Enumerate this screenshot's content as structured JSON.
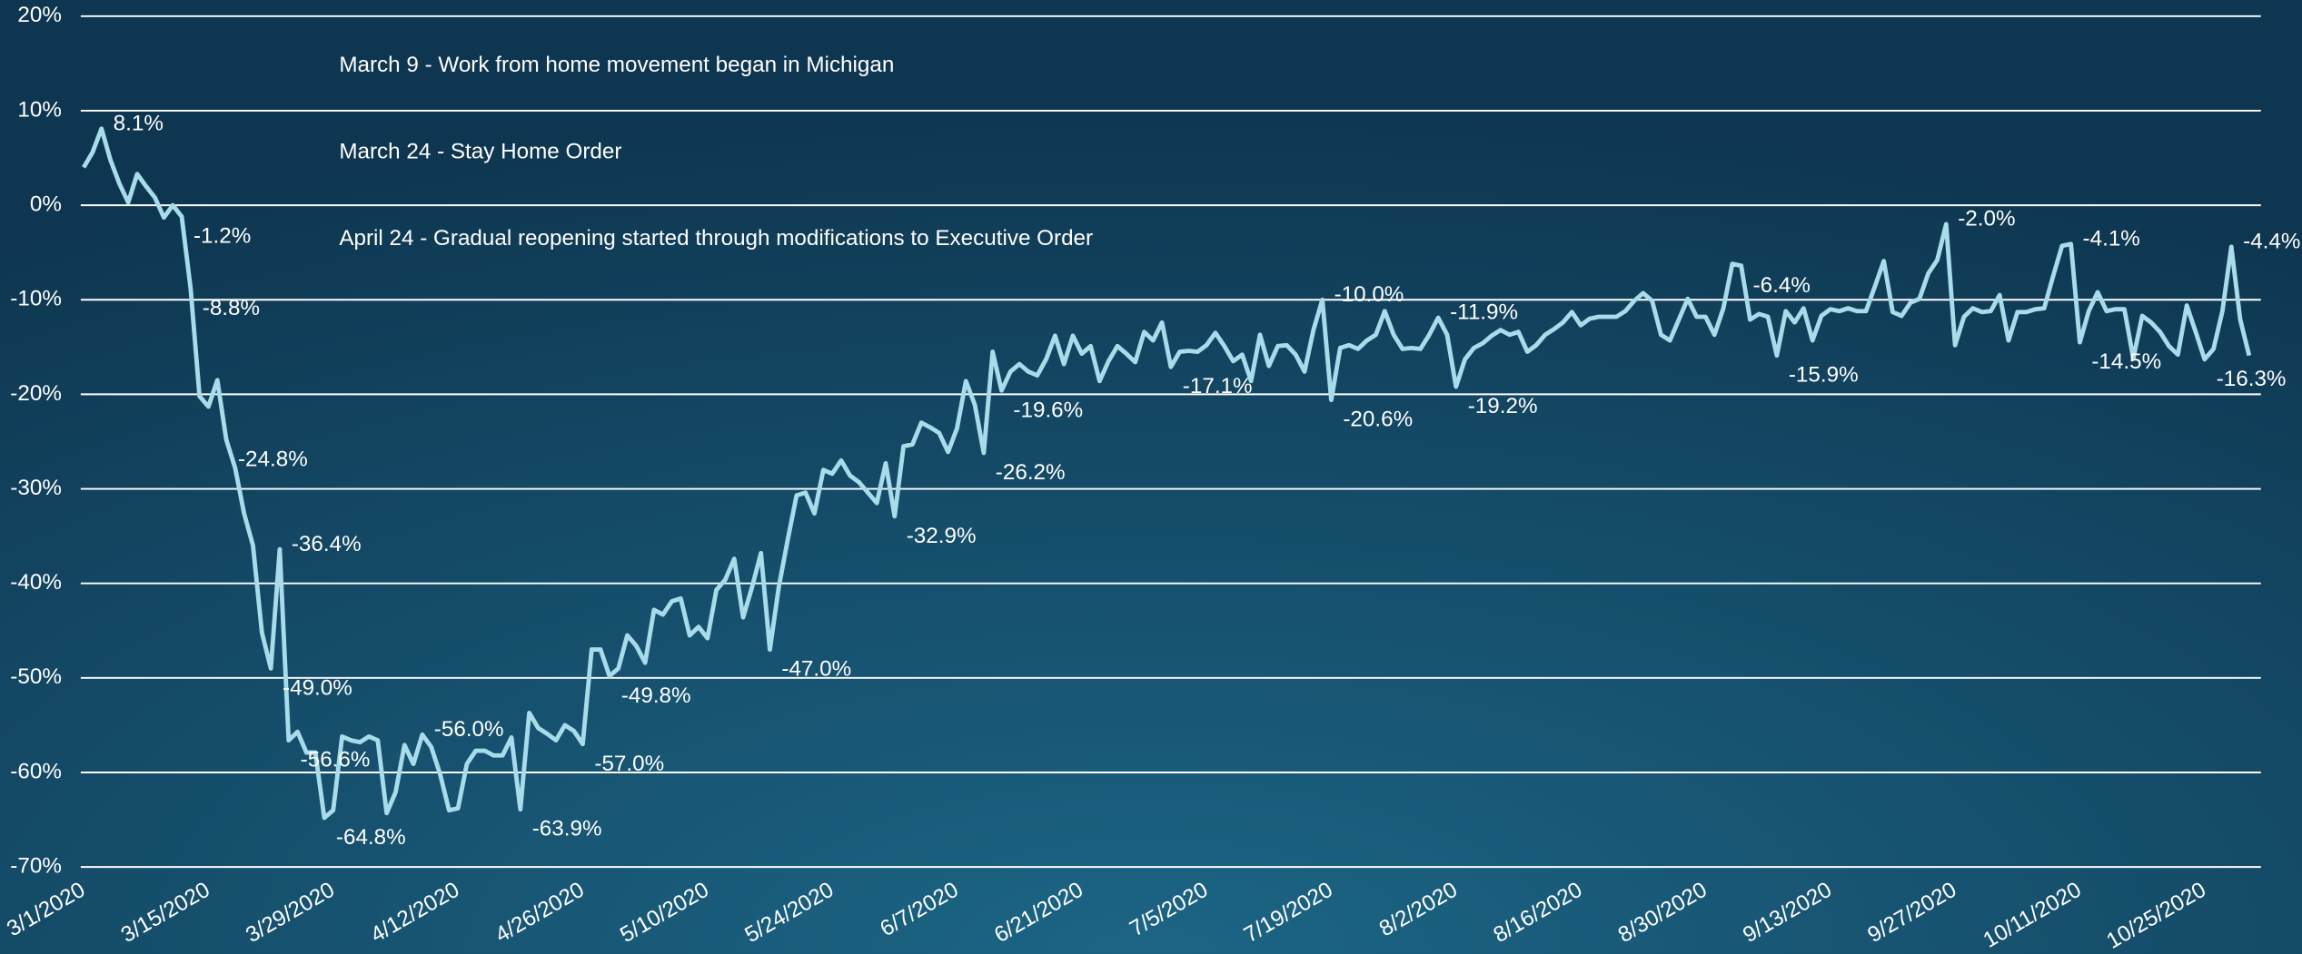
{
  "chart_data": {
    "type": "line",
    "annotations": [
      "March 9 - Work from home movement began in Michigan",
      "March 24 - Stay Home Order",
      "April 24 - Gradual reopening started through modifications to Executive Order"
    ],
    "categories": [
      "3/1/2020",
      null,
      null,
      null,
      null,
      null,
      null,
      null,
      null,
      null,
      null,
      null,
      null,
      null,
      "3/15/2020",
      null,
      null,
      null,
      null,
      null,
      null,
      null,
      null,
      null,
      null,
      null,
      null,
      null,
      "3/29/2020",
      null,
      null,
      null,
      null,
      null,
      null,
      null,
      null,
      null,
      null,
      null,
      null,
      null,
      "4/12/2020",
      null,
      null,
      null,
      null,
      null,
      null,
      null,
      null,
      null,
      null,
      null,
      null,
      null,
      "4/26/2020",
      null,
      null,
      null,
      null,
      null,
      null,
      null,
      null,
      null,
      null,
      null,
      null,
      null,
      "5/10/2020",
      null,
      null,
      null,
      null,
      null,
      null,
      null,
      null,
      null,
      null,
      null,
      null,
      null,
      "5/24/2020",
      null,
      null,
      null,
      null,
      null,
      null,
      null,
      null,
      null,
      null,
      null,
      null,
      null,
      "6/7/2020",
      null,
      null,
      null,
      null,
      null,
      null,
      null,
      null,
      null,
      null,
      null,
      null,
      null,
      "6/21/2020",
      null,
      null,
      null,
      null,
      null,
      null,
      null,
      null,
      null,
      null,
      null,
      null,
      null,
      "7/5/2020",
      null,
      null,
      null,
      null,
      null,
      null,
      null,
      null,
      null,
      null,
      null,
      null,
      null,
      "7/19/2020",
      null,
      null,
      null,
      null,
      null,
      null,
      null,
      null,
      null,
      null,
      null,
      null,
      null,
      "8/2/2020",
      null,
      null,
      null,
      null,
      null,
      null,
      null,
      null,
      null,
      null,
      null,
      null,
      null,
      "8/16/2020",
      null,
      null,
      null,
      null,
      null,
      null,
      null,
      null,
      null,
      null,
      null,
      null,
      null,
      "8/30/2020",
      null,
      null,
      null,
      null,
      null,
      null,
      null,
      null,
      null,
      null,
      null,
      null,
      null,
      "9/13/2020",
      null,
      null,
      null,
      null,
      null,
      null,
      null,
      null,
      null,
      null,
      null,
      null,
      null,
      "9/27/2020",
      null,
      null,
      null,
      null,
      null,
      null,
      null,
      null,
      null,
      null,
      null,
      null,
      null,
      "10/11/2020",
      null,
      null,
      null,
      null,
      null,
      null,
      null,
      null,
      null,
      null,
      null,
      null,
      null,
      "10/25/2020",
      null,
      null,
      null,
      null,
      null
    ],
    "values": [
      4.0,
      5.6,
      8.1,
      4.8,
      2.3,
      0.3,
      3.3,
      2.0,
      0.8,
      -1.3,
      0.0,
      -1.2,
      -8.8,
      -20.2,
      -21.3,
      -18.5,
      -24.8,
      -27.8,
      -32.6,
      -36.0,
      -45.2,
      -49.0,
      -36.4,
      -56.6,
      -55.7,
      -57.9,
      -57.9,
      -64.8,
      -64.0,
      -56.2,
      -56.6,
      -56.8,
      -56.2,
      -56.6,
      -64.3,
      -62.1,
      -57.1,
      -59.1,
      -56.0,
      -57.3,
      -60.2,
      -64.0,
      -63.8,
      -59.1,
      -57.7,
      -57.7,
      -58.2,
      -58.2,
      -56.3,
      -63.9,
      -53.7,
      -55.3,
      -55.9,
      -56.6,
      -55.0,
      -55.6,
      -57.0,
      -47.0,
      -47.0,
      -49.8,
      -49.0,
      -45.5,
      -46.6,
      -48.4,
      -42.8,
      -43.3,
      -41.9,
      -41.6,
      -45.5,
      -44.6,
      -45.8,
      -40.7,
      -39.6,
      -37.4,
      -43.6,
      -40.4,
      -36.8,
      -47.0,
      -40.4,
      -35.4,
      -30.7,
      -30.4,
      -32.6,
      -28.0,
      -28.4,
      -27.0,
      -28.6,
      -29.3,
      -30.4,
      -31.5,
      -27.3,
      -32.9,
      -25.5,
      -25.3,
      -23.0,
      -23.5,
      -24.1,
      -26.1,
      -23.6,
      -18.6,
      -21.1,
      -26.2,
      -15.5,
      -19.6,
      -17.6,
      -16.8,
      -17.6,
      -18.0,
      -16.3,
      -13.8,
      -16.8,
      -13.8,
      -15.7,
      -14.9,
      -18.6,
      -16.5,
      -14.9,
      -15.7,
      -16.6,
      -13.4,
      -14.3,
      -12.4,
      -17.1,
      -15.5,
      -15.4,
      -15.5,
      -14.8,
      -13.5,
      -14.9,
      -16.5,
      -15.8,
      -18.6,
      -13.7,
      -17.0,
      -14.9,
      -14.8,
      -15.8,
      -17.6,
      -13.2,
      -10.0,
      -20.6,
      -15.1,
      -14.8,
      -15.2,
      -14.3,
      -13.7,
      -11.2,
      -13.7,
      -15.2,
      -15.1,
      -15.2,
      -13.7,
      -11.9,
      -13.7,
      -19.2,
      -16.3,
      -15.1,
      -14.6,
      -13.8,
      -13.2,
      -13.7,
      -13.4,
      -15.5,
      -14.8,
      -13.7,
      -13.1,
      -12.4,
      -11.3,
      -12.7,
      -12.0,
      -11.8,
      -11.8,
      -11.8,
      -11.2,
      -10.1,
      -9.3,
      -10.1,
      -13.7,
      -14.3,
      -12.1,
      -9.9,
      -11.8,
      -11.8,
      -13.7,
      -10.9,
      -6.2,
      -6.4,
      -12.1,
      -11.5,
      -11.8,
      -15.9,
      -11.2,
      -12.4,
      -10.9,
      -14.3,
      -11.7,
      -11.0,
      -11.2,
      -10.9,
      -11.2,
      -11.2,
      -8.6,
      -5.9,
      -11.3,
      -11.7,
      -10.3,
      -9.9,
      -7.2,
      -5.8,
      -2.0,
      -14.8,
      -11.8,
      -10.9,
      -11.3,
      -11.2,
      -9.5,
      -14.3,
      -11.3,
      -11.3,
      -11.0,
      -10.9,
      -7.5,
      -4.3,
      -4.1,
      -14.5,
      -11.2,
      -9.2,
      -11.2,
      -11.0,
      -11.0,
      -16.2,
      -11.7,
      -12.4,
      -13.4,
      -14.9,
      -15.8,
      -10.6,
      -13.4,
      -16.3,
      -15.2,
      -11.2,
      -4.4,
      -12.1,
      -15.9
    ],
    "value_labels": [
      null,
      null,
      "8.1%",
      null,
      null,
      null,
      null,
      null,
      null,
      null,
      null,
      "-1.2%",
      "-8.8%",
      null,
      null,
      null,
      "-24.8%",
      null,
      null,
      null,
      null,
      "-49.0%",
      "-36.4%",
      "-56.6%",
      null,
      null,
      null,
      "-64.8%",
      null,
      null,
      null,
      null,
      null,
      null,
      null,
      null,
      null,
      null,
      "-56.0%",
      null,
      null,
      null,
      null,
      null,
      null,
      null,
      null,
      null,
      null,
      "-63.9%",
      null,
      null,
      null,
      null,
      null,
      null,
      "-57.0%",
      null,
      null,
      "-49.8%",
      null,
      null,
      null,
      null,
      null,
      null,
      null,
      null,
      null,
      null,
      null,
      null,
      null,
      null,
      null,
      null,
      null,
      "-47.0%",
      null,
      null,
      null,
      null,
      null,
      null,
      null,
      null,
      null,
      null,
      null,
      null,
      null,
      "-32.9%",
      null,
      null,
      null,
      null,
      null,
      null,
      null,
      null,
      null,
      "-26.2%",
      null,
      "-19.6%",
      null,
      null,
      null,
      null,
      null,
      null,
      null,
      null,
      null,
      null,
      null,
      null,
      null,
      null,
      null,
      null,
      null,
      null,
      "-17.1%",
      null,
      null,
      null,
      null,
      null,
      null,
      null,
      null,
      null,
      null,
      null,
      null,
      null,
      null,
      null,
      null,
      "-10.0%",
      "-20.6%",
      null,
      null,
      null,
      null,
      null,
      null,
      null,
      null,
      null,
      null,
      null,
      "-11.9%",
      null,
      "-19.2%",
      null,
      null,
      null,
      null,
      null,
      null,
      null,
      null,
      null,
      null,
      null,
      null,
      null,
      null,
      null,
      null,
      null,
      null,
      null,
      null,
      null,
      null,
      null,
      null,
      null,
      null,
      null,
      null,
      null,
      null,
      null,
      "-6.4%",
      null,
      null,
      null,
      "-15.9%",
      null,
      null,
      null,
      null,
      null,
      null,
      null,
      null,
      null,
      null,
      null,
      null,
      null,
      null,
      null,
      null,
      null,
      null,
      "-2.0%",
      null,
      null,
      null,
      null,
      null,
      null,
      null,
      null,
      null,
      null,
      null,
      null,
      null,
      "-4.1%",
      "-14.5%",
      null,
      null,
      null,
      null,
      null,
      null,
      null,
      null,
      null,
      null,
      null,
      null,
      null,
      "-16.3%",
      null,
      null,
      "-4.4%",
      null,
      null
    ],
    "color": "#a8dcea",
    "ylim": [
      -70,
      20
    ],
    "yticks": [
      {
        "value": -70,
        "label": "-70%"
      },
      {
        "value": -60,
        "label": "-60%"
      },
      {
        "value": -50,
        "label": "-50%"
      },
      {
        "value": -40,
        "label": "-40%"
      },
      {
        "value": -30,
        "label": "-30%"
      },
      {
        "value": -20,
        "label": "-20%"
      },
      {
        "value": -10,
        "label": "-10%"
      },
      {
        "value": 0,
        "label": "0%"
      },
      {
        "value": 10,
        "label": "10%"
      },
      {
        "value": 20,
        "label": "20%"
      }
    ],
    "grid": true
  }
}
